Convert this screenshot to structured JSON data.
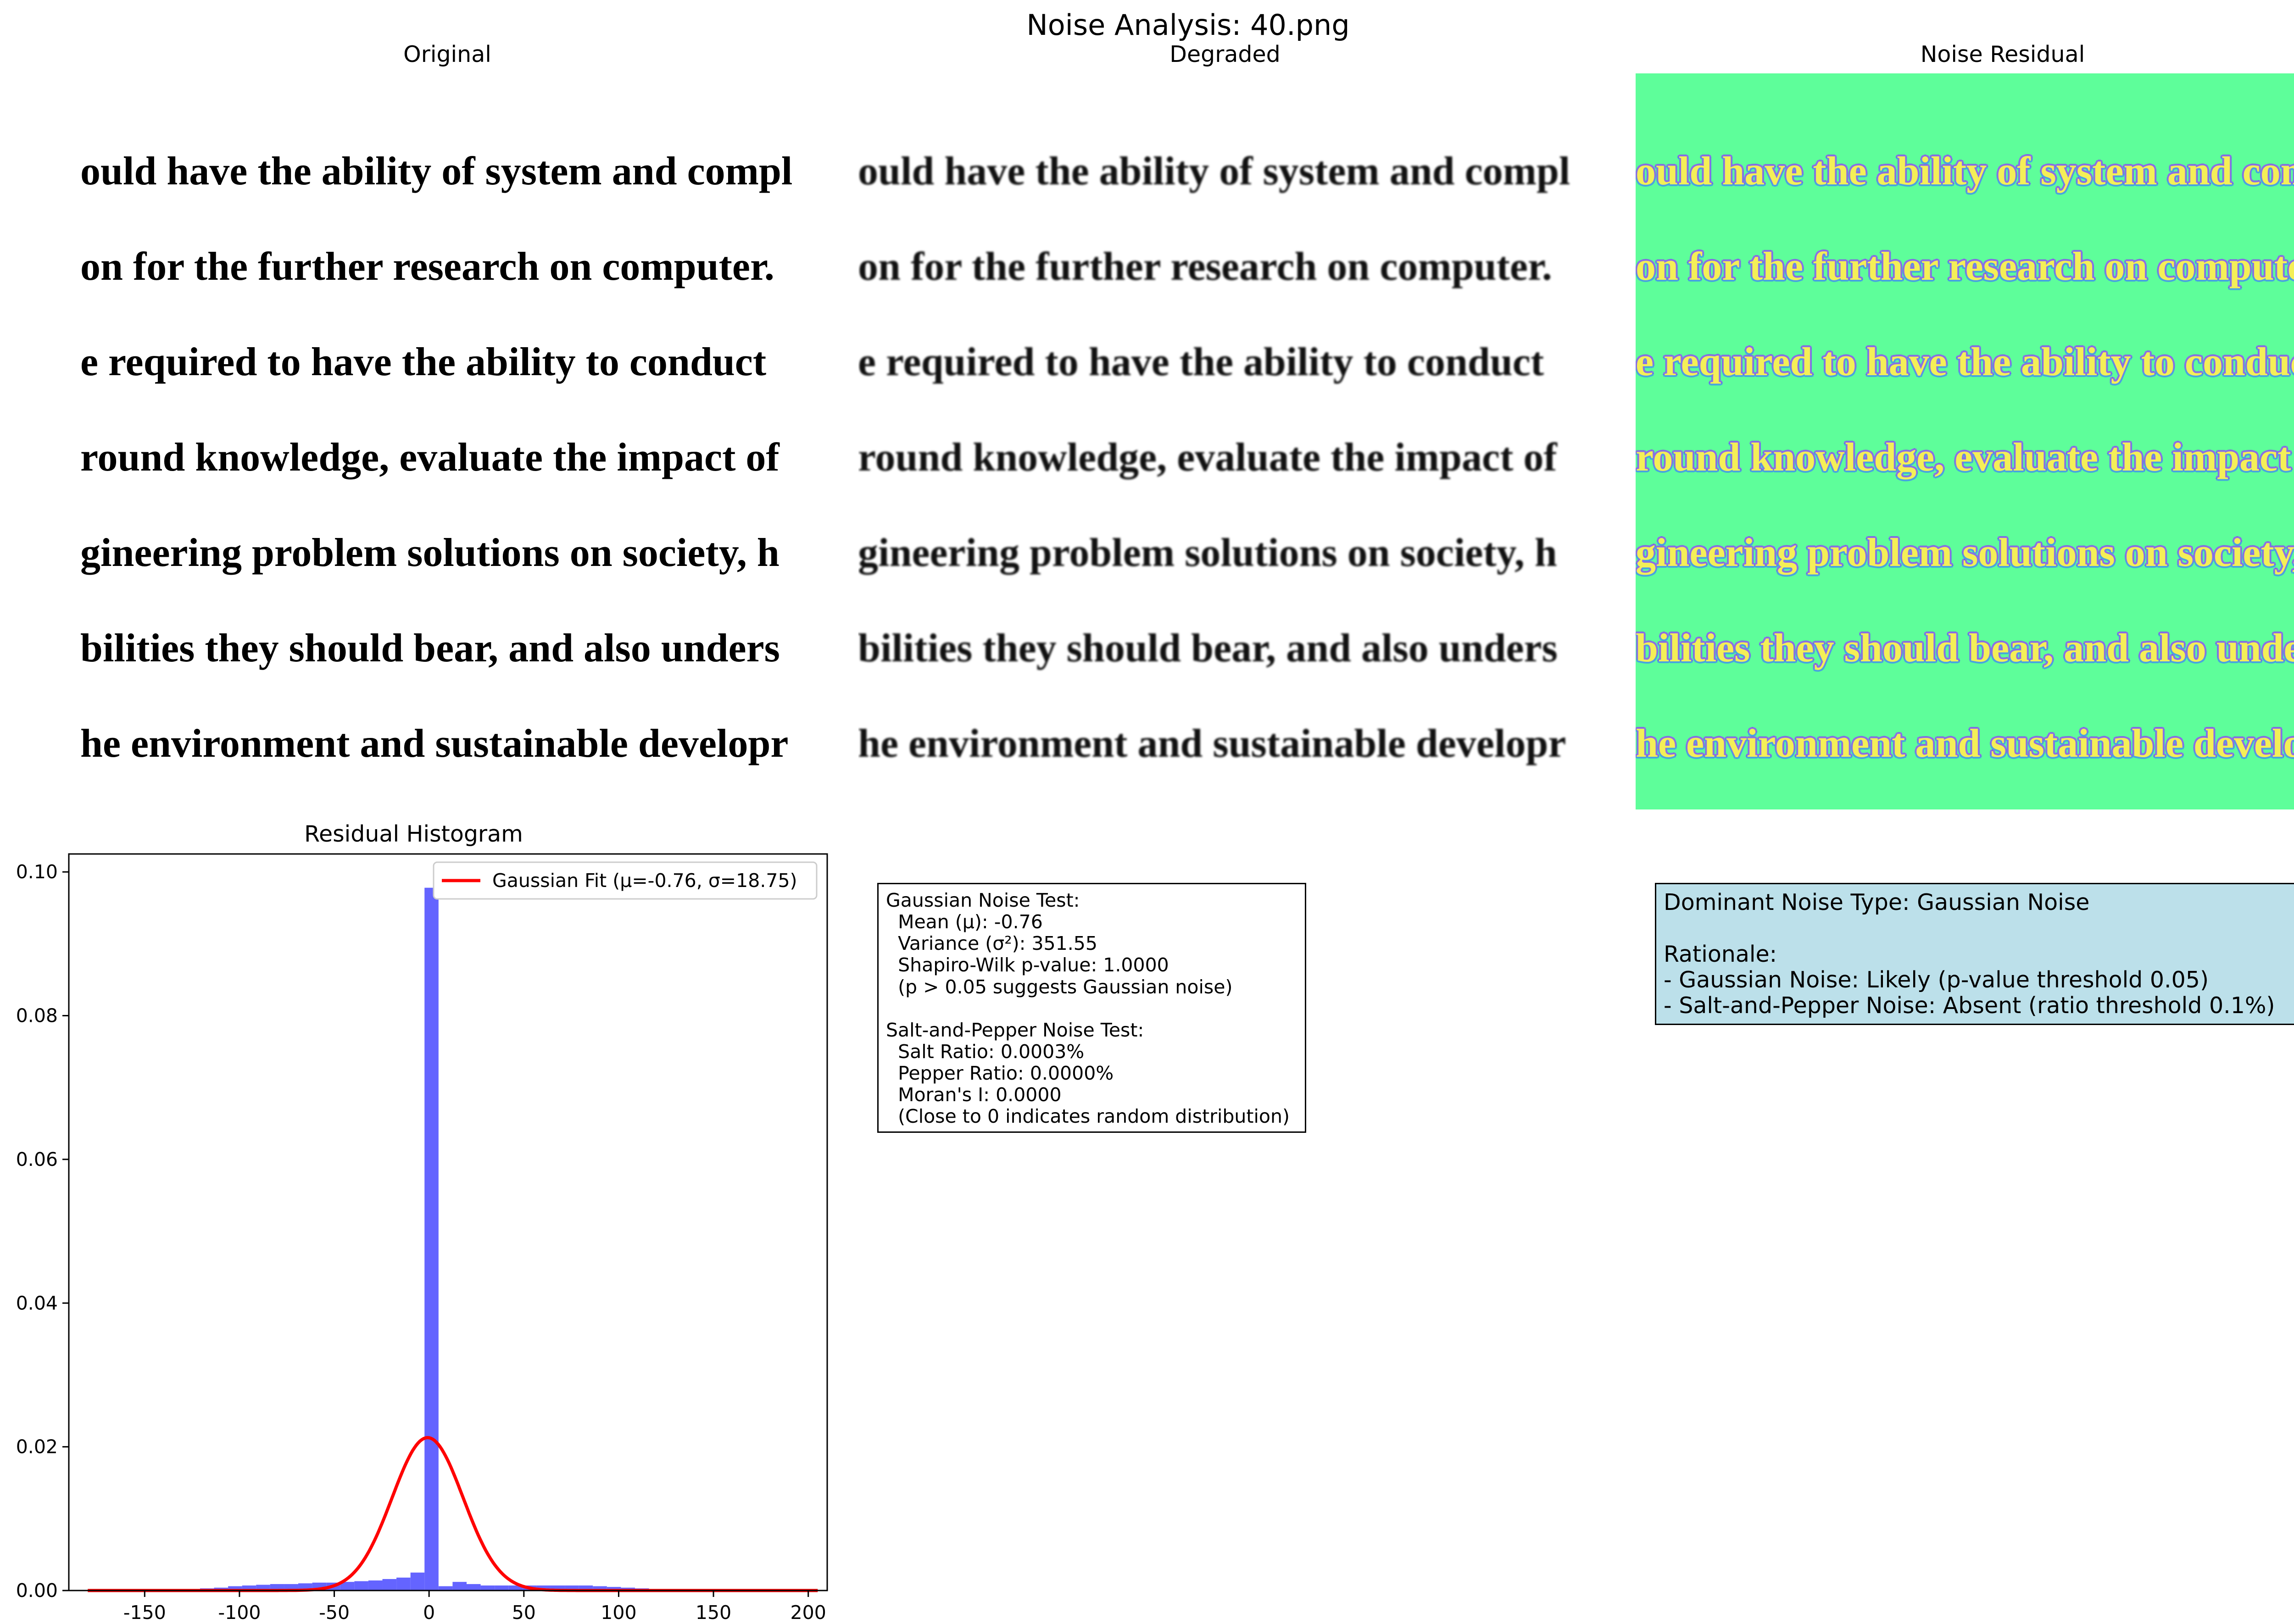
{
  "figure": {
    "title": "Noise Analysis: 40.png",
    "panels": {
      "original": "Original",
      "degraded": "Degraded",
      "residual": "Noise Residual",
      "histogram": "Residual Histogram"
    }
  },
  "text_lines": [
    "ould have the ability of system and compl",
    "on for the further research on computer.",
    "e required to have the ability to conduct",
    "round knowledge, evaluate the impact of",
    "gineering problem solutions on society, h",
    "bilities they should bear, and also unders",
    "he environment and sustainable developr"
  ],
  "gaussian_box": {
    "lines": [
      "Gaussian Noise Test:",
      "  Mean (μ): -0.76",
      "  Variance (σ²): 351.55",
      "  Shapiro-Wilk p-value: 1.0000",
      "  (p > 0.05 suggests Gaussian noise)",
      "",
      "Salt-and-Pepper Noise Test:",
      "  Salt Ratio: 0.0003%",
      "  Pepper Ratio: 0.0000%",
      "  Moran's I: 0.0000",
      "  (Close to 0 indicates random distribution)"
    ]
  },
  "dominant_box": {
    "lines": [
      "Dominant Noise Type: Gaussian Noise",
      "",
      "Rationale:",
      "- Gaussian Noise: Likely (p-value threshold 0.05)",
      "- Salt-and-Pepper Noise: Absent (ratio threshold 0.1%)"
    ]
  },
  "colors": {
    "bar": "#6464ff",
    "fit_line": "#ff0000",
    "residual_bg": "#5efe9a",
    "residual_text": "#f4ef57",
    "info_bg": "#bce0ea"
  },
  "chart_data": {
    "type": "bar",
    "title": "Residual Histogram",
    "xlabel": "",
    "ylabel": "",
    "xlim": [
      -190,
      210
    ],
    "ylim": [
      0,
      0.1025
    ],
    "xticks": [
      -150,
      -100,
      -50,
      0,
      50,
      100,
      150,
      200
    ],
    "yticks": [
      0.0,
      0.02,
      0.04,
      0.06,
      0.08,
      0.1
    ],
    "ytick_labels": [
      "0.00",
      "0.02",
      "0.04",
      "0.06",
      "0.08",
      "0.10"
    ],
    "legend": {
      "position": "top-right",
      "entries": [
        "Gaussian Fit (μ=-0.76, σ=18.75)"
      ]
    },
    "bins": [
      {
        "x0": -180,
        "x1": -172.6,
        "value": 3e-05
      },
      {
        "x0": -172.6,
        "x1": -165.2,
        "value": 4e-05
      },
      {
        "x0": -165.2,
        "x1": -157.8,
        "value": 5e-05
      },
      {
        "x0": -157.8,
        "x1": -150.4,
        "value": 6e-05
      },
      {
        "x0": -150.4,
        "x1": -143.0,
        "value": 8e-05
      },
      {
        "x0": -143.0,
        "x1": -135.6,
        "value": 0.0001
      },
      {
        "x0": -135.6,
        "x1": -128.2,
        "value": 0.00015
      },
      {
        "x0": -128.2,
        "x1": -120.8,
        "value": 0.0002
      },
      {
        "x0": -120.8,
        "x1": -113.4,
        "value": 0.0003
      },
      {
        "x0": -113.4,
        "x1": -106.0,
        "value": 0.0004
      },
      {
        "x0": -106.0,
        "x1": -98.6,
        "value": 0.0006
      },
      {
        "x0": -98.6,
        "x1": -91.2,
        "value": 0.0007
      },
      {
        "x0": -91.2,
        "x1": -83.8,
        "value": 0.0008
      },
      {
        "x0": -83.8,
        "x1": -76.4,
        "value": 0.0009
      },
      {
        "x0": -76.4,
        "x1": -69.0,
        "value": 0.0009
      },
      {
        "x0": -69.0,
        "x1": -61.6,
        "value": 0.001
      },
      {
        "x0": -61.6,
        "x1": -54.2,
        "value": 0.0011
      },
      {
        "x0": -54.2,
        "x1": -46.8,
        "value": 0.0011
      },
      {
        "x0": -46.8,
        "x1": -39.4,
        "value": 0.0012
      },
      {
        "x0": -39.4,
        "x1": -32.0,
        "value": 0.0013
      },
      {
        "x0": -32.0,
        "x1": -24.6,
        "value": 0.0014
      },
      {
        "x0": -24.6,
        "x1": -17.2,
        "value": 0.0016
      },
      {
        "x0": -17.2,
        "x1": -9.8,
        "value": 0.0018
      },
      {
        "x0": -9.8,
        "x1": -2.4,
        "value": 0.0025
      },
      {
        "x0": -2.4,
        "x1": 5.0,
        "value": 0.0978
      },
      {
        "x0": 5.0,
        "x1": 12.4,
        "value": 0.0006
      },
      {
        "x0": 12.4,
        "x1": 19.8,
        "value": 0.0012
      },
      {
        "x0": 19.8,
        "x1": 27.2,
        "value": 0.0009
      },
      {
        "x0": 27.2,
        "x1": 34.6,
        "value": 0.0007
      },
      {
        "x0": 34.6,
        "x1": 42.0,
        "value": 0.0007
      },
      {
        "x0": 42.0,
        "x1": 49.4,
        "value": 0.0007
      },
      {
        "x0": 49.4,
        "x1": 56.8,
        "value": 0.0007
      },
      {
        "x0": 56.8,
        "x1": 64.2,
        "value": 0.0007
      },
      {
        "x0": 64.2,
        "x1": 71.6,
        "value": 0.0007
      },
      {
        "x0": 71.6,
        "x1": 79.0,
        "value": 0.0007
      },
      {
        "x0": 79.0,
        "x1": 86.4,
        "value": 0.0007
      },
      {
        "x0": 86.4,
        "x1": 93.8,
        "value": 0.0006
      },
      {
        "x0": 93.8,
        "x1": 101.2,
        "value": 0.0005
      },
      {
        "x0": 101.2,
        "x1": 108.6,
        "value": 0.0004
      },
      {
        "x0": 108.6,
        "x1": 116.0,
        "value": 0.0003
      },
      {
        "x0": 116.0,
        "x1": 123.4,
        "value": 0.0002
      },
      {
        "x0": 123.4,
        "x1": 130.8,
        "value": 0.00015
      },
      {
        "x0": 130.8,
        "x1": 138.2,
        "value": 0.0001
      },
      {
        "x0": 138.2,
        "x1": 145.6,
        "value": 8e-05
      },
      {
        "x0": 145.6,
        "x1": 153.0,
        "value": 6e-05
      },
      {
        "x0": 153.0,
        "x1": 160.4,
        "value": 4e-05
      },
      {
        "x0": 160.4,
        "x1": 167.8,
        "value": 3e-05
      },
      {
        "x0": 167.8,
        "x1": 175.2,
        "value": 2e-05
      },
      {
        "x0": 175.2,
        "x1": 182.6,
        "value": 2e-05
      },
      {
        "x0": 182.6,
        "x1": 190.0,
        "value": 1e-05
      },
      {
        "x0": 190.0,
        "x1": 197.4,
        "value": 1e-05
      },
      {
        "x0": 197.4,
        "x1": 204.8,
        "value": 1e-05
      }
    ],
    "series": [
      {
        "name": "Gaussian Fit (μ=-0.76, σ=18.75)",
        "mu": -0.76,
        "sigma": 18.75,
        "x_range": [
          -180,
          205
        ]
      }
    ]
  }
}
